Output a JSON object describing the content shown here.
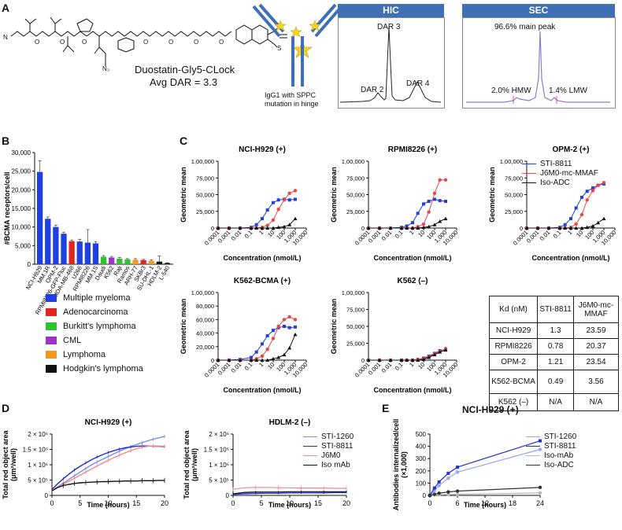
{
  "panel_labels": {
    "a": "A",
    "b": "B",
    "c": "C",
    "d": "D",
    "e": "E"
  },
  "panelA": {
    "compound_name": "Duostatin-Gly5-CLock",
    "avg_dar": "Avg DAR = 3.3",
    "antibody_note": "IgG1 with SPPC mutation in hinge",
    "hic_title": "HIC",
    "hic_peaks": {
      "dar2": "DAR 2",
      "dar3": "DAR 3",
      "dar4": "DAR 4"
    },
    "sec_title": "SEC",
    "sec_main": "96.6% main peak",
    "sec_hmw": "2.0% HMW",
    "sec_lmw": "1.4% LMW"
  },
  "panelB": {
    "ylabel": "#BCMA receptors/cell",
    "legend": [
      {
        "label": "Multiple myeloma",
        "color": "#1f3fe0"
      },
      {
        "label": "Adenocarcinoma",
        "color": "#e0241f"
      },
      {
        "label": "Burkitt's lymphoma",
        "color": "#2fc42f"
      },
      {
        "label": "CML",
        "color": "#9b35c8"
      },
      {
        "label": "Lymphoma",
        "color": "#f39a1e"
      },
      {
        "label": "Hodgkin's lymphoma",
        "color": "#111111"
      }
    ]
  },
  "panelC": {
    "legend": [
      {
        "label": "STI-8811",
        "color": "#1f3fe0"
      },
      {
        "label": "J6M0-mc-MMAF",
        "color": "#e8474a"
      },
      {
        "label": "Iso-ADC",
        "color": "#111111"
      }
    ],
    "table": {
      "headers": [
        "Kd (nM)",
        "STI-8811",
        "J6M0-mc-MMAF"
      ],
      "rows": [
        [
          "NCI-H929",
          "1.3",
          "23.59"
        ],
        [
          "RPMI8226",
          "0.78",
          "20.37"
        ],
        [
          "OPM-2",
          "1.21",
          "23.54"
        ],
        [
          "K562-BCMA",
          "0.49",
          "3.56"
        ],
        [
          "K562 (–)",
          "N/A",
          "N/A"
        ]
      ]
    }
  },
  "panelD": {
    "legend": [
      {
        "label": "STI-1260",
        "color": "#7b8cf0"
      },
      {
        "label": "STI-8811",
        "color": "#1f2fd0"
      },
      {
        "label": "J6M0",
        "color": "#ef8a8a"
      },
      {
        "label": "Iso mAb",
        "color": "#111111"
      }
    ]
  },
  "panelE": {
    "title": "NCI-H929 (+)",
    "legend": [
      {
        "label": "STI-1260",
        "color": "#9aa4f2"
      },
      {
        "label": "STI-8811",
        "color": "#1f2fd0"
      },
      {
        "label": "Iso-mAb",
        "color": "#bbbbbb"
      },
      {
        "label": "Iso-ADC",
        "color": "#333333"
      }
    ]
  },
  "chart_data": [
    {
      "id": "bcma",
      "type": "bar",
      "title": "",
      "ylabel": "#BCMA receptors/cell",
      "ylim": [
        0,
        30000
      ],
      "yticks": [
        0,
        5000,
        10000,
        15000,
        20000,
        25000,
        30000
      ],
      "ytick_labels": [
        "0",
        "5,000",
        "10,000",
        "15,000",
        "20,000",
        "25,000",
        "30,000"
      ],
      "categories": [
        "NCI-H929",
        "MM.1R",
        "OPM-2",
        "RPMI8226-GFP-Fluc",
        "MDA-MB-468",
        "U266",
        "RPMI8226",
        "MM.1S",
        "Daudi",
        "K562",
        "Raji",
        "Ramos",
        "ARH-77",
        "SKBr3",
        "SU-DHL-1",
        "HDLM-2",
        "L-540"
      ],
      "values": [
        24800,
        12200,
        10000,
        8200,
        6200,
        6100,
        5800,
        5600,
        2000,
        1800,
        1500,
        1300,
        1200,
        1100,
        900,
        700,
        300
      ],
      "errors": [
        3000,
        500,
        500,
        400,
        300,
        600,
        3500,
        400,
        300,
        300,
        300,
        200,
        300,
        200,
        300,
        1500,
        100
      ],
      "colors": [
        "#1f3fe0",
        "#1f3fe0",
        "#1f3fe0",
        "#1f3fe0",
        "#e0241f",
        "#1f3fe0",
        "#1f3fe0",
        "#1f3fe0",
        "#2fc42f",
        "#9b35c8",
        "#2fc42f",
        "#2fc42f",
        "#f39a1e",
        "#e0241f",
        "#f39a1e",
        "#111111",
        "#111111"
      ]
    },
    {
      "id": "nci",
      "type": "line",
      "title": "NCI-H929 (+)",
      "xlabel": "Concentration (nmol/L)",
      "ylabel": "Geometric mean",
      "x_log": true,
      "xlim_log": [
        -4,
        4
      ],
      "ylim": [
        0,
        100000
      ],
      "xtick_labels": [
        "0.0001",
        "0.001",
        "0.01",
        "0.1",
        "1",
        "10",
        "100",
        "1,000",
        "10,000"
      ],
      "ytick_labels": [
        "0",
        "25,000",
        "50,000",
        "75,000",
        "1,00,000"
      ],
      "x": [
        0.0001,
        0.001,
        0.01,
        0.1,
        0.3,
        1,
        3,
        10,
        30,
        100,
        300,
        1000
      ],
      "series": [
        {
          "name": "STI-8811",
          "values": [
            0,
            0,
            0,
            1000,
            5000,
            14000,
            27000,
            38000,
            42000,
            43000,
            42000,
            43000
          ]
        },
        {
          "name": "J6M0-mc-MMAF",
          "values": [
            0,
            0,
            0,
            0,
            0,
            1000,
            4000,
            12000,
            28000,
            42000,
            52000,
            56000
          ]
        },
        {
          "name": "Iso-ADC",
          "values": [
            0,
            0,
            0,
            0,
            0,
            0,
            0,
            0,
            1000,
            2000,
            5000,
            14000
          ]
        }
      ]
    },
    {
      "id": "rpmi",
      "type": "line",
      "title": "RPMI8226 (+)",
      "xlabel": "Concentration (nmol/L)",
      "ylabel": "Geometric mean",
      "x_log": true,
      "xlim_log": [
        -4,
        4
      ],
      "ylim": [
        0,
        100000
      ],
      "xtick_labels": [
        "0.0001",
        "0.001",
        "0.01",
        "0.1",
        "1",
        "10",
        "100",
        "1,000",
        "10,000"
      ],
      "ytick_labels": [
        "0",
        "25,000",
        "50,000",
        "75,000",
        "1,00,000"
      ],
      "x": [
        0.0001,
        0.001,
        0.01,
        0.1,
        0.3,
        1,
        3,
        10,
        30,
        100,
        300,
        1000
      ],
      "series": [
        {
          "name": "STI-8811",
          "values": [
            0,
            0,
            0,
            1000,
            3000,
            8000,
            22000,
            36000,
            40000,
            43000,
            41000,
            40000
          ]
        },
        {
          "name": "J6M0-mc-MMAF",
          "values": [
            0,
            0,
            0,
            0,
            0,
            0,
            2000,
            6000,
            24000,
            52000,
            72000,
            72000
          ]
        },
        {
          "name": "Iso-ADC",
          "values": [
            0,
            0,
            0,
            0,
            0,
            0,
            0,
            1000,
            2000,
            5000,
            10000,
            14000
          ]
        }
      ]
    },
    {
      "id": "opm",
      "type": "line",
      "title": "OPM-2 (+)",
      "xlabel": "Concentration (nmol/L)",
      "ylabel": "Geometric mean",
      "x_log": true,
      "xlim_log": [
        -4,
        4
      ],
      "ylim": [
        0,
        100000
      ],
      "xtick_labels": [
        "0.0001",
        "0.001",
        "0.01",
        "0.1",
        "1",
        "10",
        "100",
        "1,000",
        "10,000"
      ],
      "ytick_labels": [
        "0",
        "25,000",
        "50,000",
        "75,000",
        "1,00,000"
      ],
      "x": [
        0.0001,
        0.001,
        0.01,
        0.1,
        0.3,
        1,
        3,
        10,
        30,
        100,
        300,
        1000
      ],
      "series": [
        {
          "name": "STI-8811",
          "values": [
            0,
            0,
            0,
            1000,
            5000,
            14000,
            30000,
            46000,
            55000,
            60000,
            64000,
            66000
          ]
        },
        {
          "name": "J6M0-mc-MMAF",
          "values": [
            0,
            0,
            0,
            0,
            0,
            1000,
            6000,
            20000,
            42000,
            56000,
            64000,
            68000
          ]
        },
        {
          "name": "Iso-ADC",
          "values": [
            0,
            0,
            0,
            0,
            0,
            0,
            0,
            0,
            1000,
            3000,
            8000,
            14000
          ]
        }
      ]
    },
    {
      "id": "k562b",
      "type": "line",
      "title": "K562-BCMA (+)",
      "xlabel": "Concentration (nmol/L)",
      "ylabel": "Geometric mean",
      "x_log": true,
      "xlim_log": [
        -4,
        4
      ],
      "ylim": [
        0,
        100000
      ],
      "xtick_labels": [
        "0.0001",
        "0.001",
        "0.01",
        "0.1",
        "1",
        "10",
        "100",
        "1,000",
        "10,000"
      ],
      "ytick_labels": [
        "0",
        "20,000",
        "40,000",
        "60,000",
        "80,000",
        "1,00,000"
      ],
      "x": [
        0.0001,
        0.001,
        0.01,
        0.1,
        0.3,
        1,
        3,
        10,
        30,
        100,
        300,
        1000
      ],
      "series": [
        {
          "name": "STI-8811",
          "values": [
            0,
            0,
            1000,
            4000,
            12000,
            24000,
            36000,
            44000,
            48000,
            50000,
            48000,
            49000
          ]
        },
        {
          "name": "J6M0-mc-MMAF",
          "values": [
            0,
            0,
            0,
            0,
            2000,
            6000,
            16000,
            32000,
            50000,
            60000,
            64000,
            60000
          ]
        },
        {
          "name": "Iso-ADC",
          "values": [
            0,
            0,
            0,
            0,
            0,
            0,
            0,
            2000,
            4000,
            8000,
            18000,
            38000
          ]
        }
      ]
    },
    {
      "id": "k562n",
      "type": "line",
      "title": "K562 (–)",
      "xlabel": "Concentration (nmol/L)",
      "ylabel": "Geometric mean",
      "x_log": true,
      "xlim_log": [
        -4,
        4
      ],
      "ylim": [
        0,
        100000
      ],
      "xtick_labels": [
        "0.0001",
        "0.001",
        "0.01",
        "0.1",
        "1",
        "10",
        "100",
        "1,000",
        "10,000"
      ],
      "ytick_labels": [
        "0",
        "25,000",
        "50,000",
        "75,000",
        "1,00,000"
      ],
      "x": [
        0.0001,
        0.001,
        0.01,
        0.1,
        0.3,
        1,
        3,
        10,
        30,
        100,
        300,
        1000
      ],
      "series": [
        {
          "name": "STI-8811",
          "values": [
            0,
            0,
            0,
            0,
            0,
            0,
            1000,
            3000,
            6000,
            10000,
            14000,
            16000
          ]
        },
        {
          "name": "J6M0-mc-MMAF",
          "values": [
            0,
            0,
            0,
            0,
            0,
            0,
            1000,
            2000,
            5000,
            9000,
            13000,
            17000
          ]
        },
        {
          "name": "Iso-ADC",
          "values": [
            0,
            0,
            0,
            0,
            0,
            0,
            0,
            1000,
            4000,
            8000,
            12000,
            15000
          ]
        }
      ]
    },
    {
      "id": "d1",
      "type": "line",
      "title": "NCI-H929 (+)",
      "xlabel": "Time (hours)",
      "ylabel": "Total red object area (μm²/well)",
      "xlim": [
        0,
        20
      ],
      "ylim": [
        0,
        2000000
      ],
      "xtick_labels": [
        "0",
        "5",
        "10",
        "15",
        "20"
      ],
      "ytick_labels": [
        "0",
        "5 × 10⁵",
        "1 × 10⁶",
        "1.5 × 10⁶",
        "2 × 10⁶"
      ],
      "x": [
        0,
        1,
        2,
        3,
        4,
        5,
        6,
        7,
        8,
        9,
        10,
        11,
        12,
        13,
        14,
        15,
        16,
        17,
        18,
        19,
        20
      ],
      "series": [
        {
          "name": "STI-1260",
          "values": [
            150000,
            280000,
            400000,
            520000,
            640000,
            760000,
            880000,
            990000,
            1090000,
            1180000,
            1270000,
            1360000,
            1440000,
            1520000,
            1590000,
            1660000,
            1720000,
            1780000,
            1830000,
            1880000,
            1920000
          ]
        },
        {
          "name": "STI-8811",
          "values": [
            200000,
            380000,
            540000,
            690000,
            830000,
            950000,
            1060000,
            1160000,
            1250000,
            1330000,
            1400000,
            1460000,
            1510000,
            1550000,
            1580000,
            1600000,
            1610000,
            1610000,
            1600000,
            1600000,
            1590000
          ]
        },
        {
          "name": "J6M0",
          "values": [
            150000,
            260000,
            360000,
            460000,
            560000,
            660000,
            760000,
            860000,
            960000,
            1050000,
            1140000,
            1230000,
            1310000,
            1390000,
            1460000,
            1520000,
            1570000,
            1600000,
            1610000,
            1610000,
            1600000
          ]
        },
        {
          "name": "Iso mAb",
          "values": [
            150000,
            260000,
            320000,
            360000,
            390000,
            410000,
            420000,
            430000,
            440000,
            450000,
            450000,
            460000,
            460000,
            470000,
            470000,
            470000,
            480000,
            480000,
            480000,
            490000,
            490000
          ]
        }
      ]
    },
    {
      "id": "d2",
      "type": "line",
      "title": "HDLM-2 (–)",
      "xlabel": "Time (hours)",
      "ylabel": "Total red object area (μm²/well)",
      "xlim": [
        0,
        20
      ],
      "ylim": [
        0,
        2000000
      ],
      "xtick_labels": [
        "0",
        "5",
        "10",
        "15",
        "20"
      ],
      "ytick_labels": [
        "0",
        "5 × 10⁵",
        "1 × 10⁶",
        "1.5 × 10⁶",
        "2 × 10⁶"
      ],
      "x": [
        0,
        2,
        4,
        6,
        8,
        10,
        12,
        14,
        16,
        18,
        20
      ],
      "series": [
        {
          "name": "STI-1260",
          "values": [
            50000,
            80000,
            90000,
            100000,
            100000,
            110000,
            110000,
            110000,
            110000,
            110000,
            110000
          ]
        },
        {
          "name": "STI-8811",
          "values": [
            30000,
            50000,
            60000,
            70000,
            70000,
            80000,
            80000,
            80000,
            80000,
            90000,
            90000
          ]
        },
        {
          "name": "J6M0",
          "values": [
            200000,
            250000,
            260000,
            260000,
            250000,
            250000,
            240000,
            240000,
            240000,
            230000,
            230000
          ]
        },
        {
          "name": "Iso mAb",
          "values": [
            50000,
            100000,
            110000,
            110000,
            110000,
            120000,
            120000,
            120000,
            120000,
            120000,
            120000
          ]
        }
      ]
    },
    {
      "id": "e",
      "type": "line",
      "title": "NCI-H929 (+)",
      "xlabel": "Time (hours)",
      "ylabel": "Antibodies internalized/cell (×1,000)",
      "xlim": [
        0,
        24
      ],
      "ylim": [
        0,
        500
      ],
      "xtick_labels": [
        "0",
        "6",
        "12",
        "18",
        "24"
      ],
      "ytick_labels": [
        "0",
        "100",
        "200",
        "300",
        "400",
        "500"
      ],
      "x": [
        0,
        1,
        2,
        4,
        6,
        24
      ],
      "series": [
        {
          "name": "STI-1260",
          "values": [
            0,
            40,
            80,
            140,
            190,
            375
          ]
        },
        {
          "name": "STI-8811",
          "values": [
            0,
            60,
            110,
            180,
            230,
            445
          ]
        },
        {
          "name": "Iso-mAb",
          "values": [
            0,
            3,
            5,
            7,
            9,
            20
          ]
        },
        {
          "name": "Iso-ADC",
          "values": [
            0,
            10,
            18,
            28,
            35,
            65
          ]
        }
      ]
    }
  ]
}
